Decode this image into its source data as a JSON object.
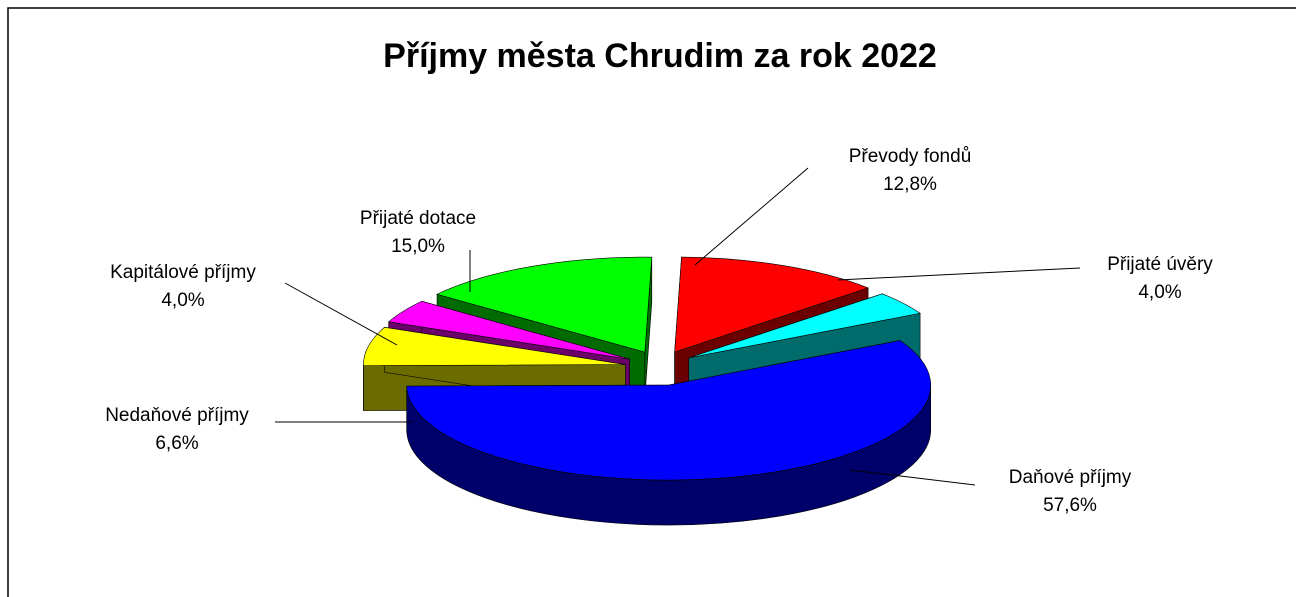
{
  "chart_data": {
    "type": "pie3d",
    "title": "Příjmy města Chrudim za rok 2022",
    "categories": [
      "Daňové příjmy",
      "Nedaňové příjmy",
      "Kapitálové příjmy",
      "Přijaté dotace",
      "Převody fondů",
      "Přijaté úvěry"
    ],
    "values": [
      57.6,
      6.6,
      4.0,
      15.0,
      12.8,
      4.0
    ],
    "value_labels": [
      "57,6%",
      "6,6%",
      "4,0%",
      "15,0%",
      "12,8%",
      "4,0%"
    ],
    "colors": [
      "#0000ff",
      "#ffff00",
      "#ff00ff",
      "#00ff00",
      "#ff0000",
      "#00ffff"
    ]
  }
}
